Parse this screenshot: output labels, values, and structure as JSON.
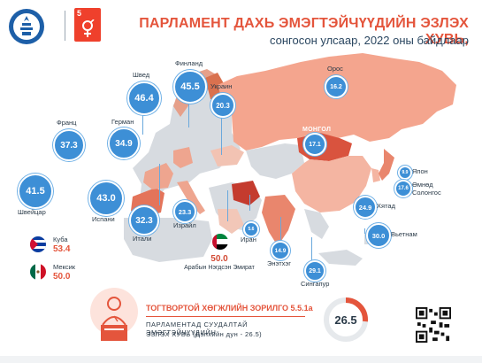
{
  "header": {
    "title": "ПАРЛАМЕНТ ДАХЬ ЭМЭГТЭЙЧҮҮДИЙН ЭЗЛЭХ ХУВЬ,",
    "subtitle": "сонгосон улсаар, 2022 оны байдлаар",
    "sdg_number": "5"
  },
  "map": {
    "mongolia_label": "МОНГОЛ"
  },
  "chart_data": {
    "type": "bubble-map",
    "title": "ПАРЛАМЕНТ ДАХЬ ЭМЭГТЭЙЧҮҮДИЙН ЭЗЛЭХ ХУВЬ,",
    "subtitle": "сонгосон улсаар, 2022 оны байдлаар",
    "unit": "%",
    "points": [
      {
        "country": "Швед",
        "value": "46.4"
      },
      {
        "country": "Финланд",
        "value": "45.5"
      },
      {
        "country": "Украин",
        "value": "20.3"
      },
      {
        "country": "Франц",
        "value": "37.3"
      },
      {
        "country": "Герман",
        "value": "34.9"
      },
      {
        "country": "Швейцар",
        "value": "41.5"
      },
      {
        "country": "Испани",
        "value": "43.0"
      },
      {
        "country": "Итали",
        "value": "32.3"
      },
      {
        "country": "Израйл",
        "value": "23.3"
      },
      {
        "country": "Иран",
        "value": "5.6"
      },
      {
        "country": "Орос",
        "value": "16.2"
      },
      {
        "country": "Монгол",
        "value": "17.1"
      },
      {
        "country": "Япон",
        "value": "9.9"
      },
      {
        "country": "Өмнөд Солонгос",
        "value": "17.6"
      },
      {
        "country": "Хятад",
        "value": "24.9"
      },
      {
        "country": "Вьетнам",
        "value": "30.0"
      },
      {
        "country": "Энэтхэг",
        "value": "14.9"
      },
      {
        "country": "Сингапур",
        "value": "29.1"
      },
      {
        "country": "Арабын Нэгдсэн Эмират",
        "value": "50.0"
      },
      {
        "country": "Куба",
        "value": "53.4"
      },
      {
        "country": "Мексик",
        "value": "50.0"
      }
    ]
  },
  "goal": {
    "title": "ТОГТВОРТОЙ ХӨГЖЛИЙН ЗОРИЛГО 5.5.1а",
    "line1": "ПАРЛАМЕНТАД СУУДАЛТАЙ ЭМЭГТЭЙЧҮҮДИЙН",
    "line2": "ЭЗЛЭХ ХУВЬ (Дэлхийн дун - 26.5)",
    "value": "26.5",
    "fraction": 0.265
  }
}
